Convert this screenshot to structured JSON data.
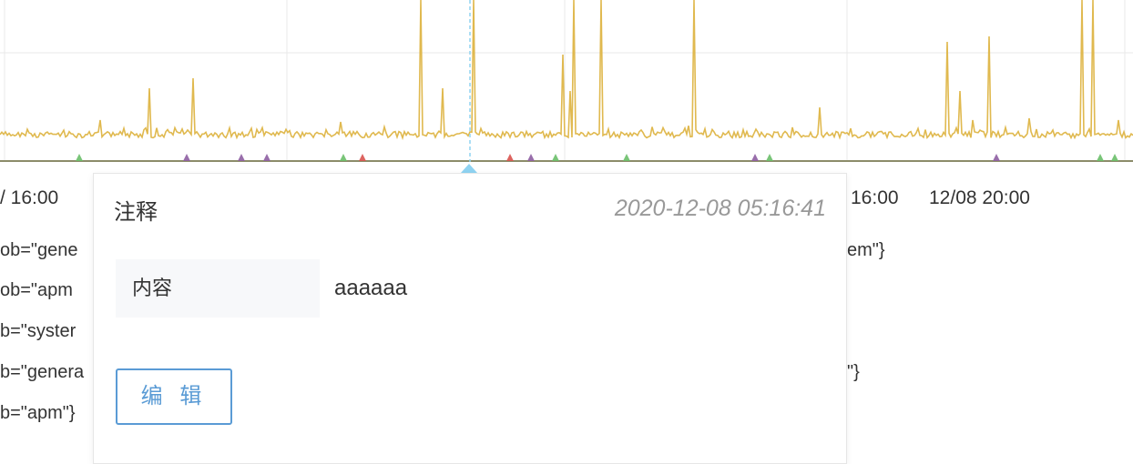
{
  "chart": {
    "x_ticks": [
      "/ 16:00",
      "16:00",
      "12/08 20:00"
    ],
    "colors": {
      "main_series": "#e0b94f",
      "grid": "#e8e8e8",
      "cursor": "#8fd3f2",
      "baseline": "#8c8c6a",
      "small_green": "#6abf69",
      "small_purple": "#8e5ea2",
      "small_red": "#d9534f"
    },
    "cursor_label": "cursor-line"
  },
  "legend": {
    "left": [
      "ob=\"gene",
      "ob=\"apm",
      "b=\"syster",
      "b=\"genera",
      "b=\"apm\"}"
    ],
    "right": [
      "em\"}",
      "\"}"
    ]
  },
  "popup": {
    "title": "注释",
    "timestamp": "2020-12-08 05:16:41",
    "field_label": "内容",
    "field_value": "aaaaaa",
    "edit_label": "编 辑"
  }
}
